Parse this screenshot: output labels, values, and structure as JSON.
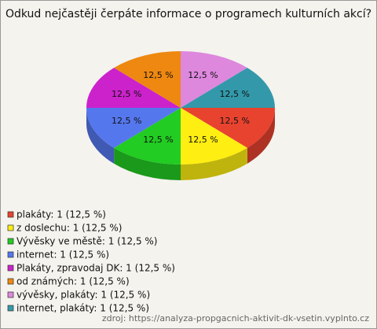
{
  "chart_data": {
    "type": "pie",
    "title": "Odkud nejčastěji čerpáte informace o programech kulturních akcí?",
    "categories": [
      "plakáty",
      "z doslechu",
      "Vývěsky ve městě",
      "internet",
      "Plakáty, zpravodaj DK",
      "od známých",
      "vývěsky, plakáty",
      "internet, plakáty"
    ],
    "legend_labels": [
      "plakáty: 1 (12,5 %)",
      "z doslechu: 1 (12,5 %)",
      "Vývěsky ve městě: 1 (12,5 %)",
      "internet: 1 (12,5 %)",
      "Plakáty, zpravodaj DK: 1 (12,5 %)",
      "od známých: 1 (12,5 %)",
      "vývěsky, plakáty: 1 (12,5 %)",
      "internet, plakáty: 1 (12,5 %)"
    ],
    "values": [
      12.5,
      12.5,
      12.5,
      12.5,
      12.5,
      12.5,
      12.5,
      12.5
    ],
    "value_labels": [
      "12,5 %",
      "12,5 %",
      "12,5 %",
      "12,5 %",
      "12,5 %",
      "12,5 %",
      "12,5 %",
      "12,5 %"
    ],
    "colors": [
      "#e8432f",
      "#ffee11",
      "#22cc22",
      "#5577ee",
      "#cc22cc",
      "#ee8811",
      "#dd88dd",
      "#3399aa"
    ],
    "source": "zdroj: https://analyza-propgacnich-aktivit-dk-vsetin.vyplnto.cz"
  }
}
